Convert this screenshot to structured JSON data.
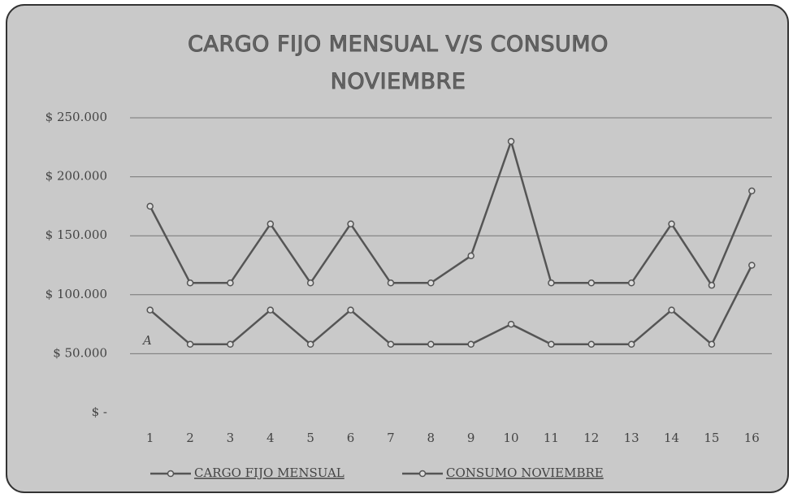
{
  "chart_data": {
    "type": "line",
    "title": "CARGO FIJO MENSUAL V/S CONSUMO NOVIEMBRE",
    "annotation": "A",
    "categories": [
      "1",
      "2",
      "3",
      "4",
      "5",
      "6",
      "7",
      "8",
      "9",
      "10",
      "11",
      "12",
      "13",
      "14",
      "15",
      "16"
    ],
    "series": [
      {
        "name": "CARGO FIJO MENSUAL",
        "color": "#555555",
        "values": [
          87000,
          58000,
          58000,
          87000,
          58000,
          87000,
          58000,
          58000,
          58000,
          75000,
          58000,
          58000,
          58000,
          87000,
          58000,
          125000
        ]
      },
      {
        "name": "CONSUMO NOVIEMBRE",
        "color": "#555555",
        "values": [
          175000,
          110000,
          110000,
          160000,
          110000,
          160000,
          110000,
          110000,
          133000,
          230000,
          110000,
          110000,
          110000,
          160000,
          108000,
          188000
        ]
      }
    ],
    "ylim": [
      0,
      250000
    ],
    "yticks": [
      {
        "value": 0,
        "label": "$ -"
      },
      {
        "value": 50000,
        "label": "$ 50.000"
      },
      {
        "value": 100000,
        "label": "$ 100.000"
      },
      {
        "value": 150000,
        "label": "$ 150.000"
      },
      {
        "value": 200000,
        "label": "$ 200.000"
      },
      {
        "value": 250000,
        "label": "$ 250.000"
      }
    ],
    "grid": true,
    "legend": "bottom"
  }
}
